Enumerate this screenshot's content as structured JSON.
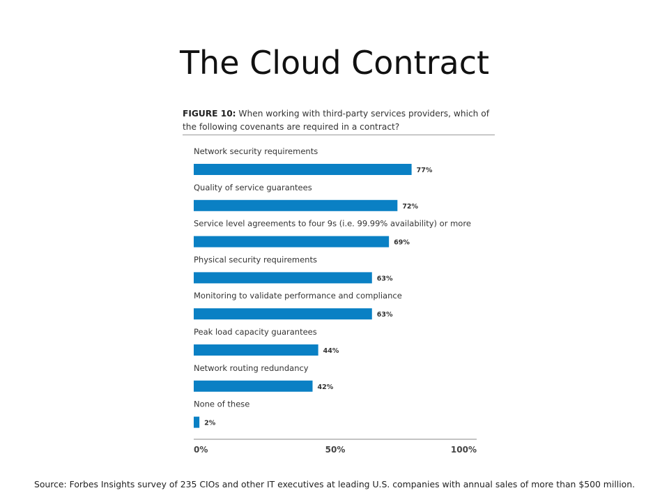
{
  "slide": {
    "title": "The Cloud Contract",
    "source": "Source: Forbes Insights survey of 235 CIOs and other IT executives at leading U.S. companies with annual sales of more than $500 million."
  },
  "figure": {
    "number": "FIGURE 10:",
    "question": "When working with third-party services providers, which of the following covenants are required in a contract?"
  },
  "chart_data": {
    "type": "bar",
    "orientation": "horizontal",
    "categories": [
      "Network security requirements",
      "Quality of service guarantees",
      "Service level agreements to four 9s (i.e. 99.99% availability) or more",
      "Physical security requirements",
      "Monitoring to validate performance and compliance",
      "Peak load capacity guarantees",
      "Network routing redundancy",
      "None of these"
    ],
    "values": [
      77,
      72,
      69,
      63,
      63,
      44,
      42,
      2
    ],
    "value_labels": [
      "77%",
      "72%",
      "69%",
      "63%",
      "63%",
      "44%",
      "42%",
      "2%"
    ],
    "xlim": [
      0,
      100
    ],
    "x_ticks": [
      0,
      50,
      100
    ],
    "x_tick_labels": [
      "0%",
      "50%",
      "100%"
    ],
    "bar_color": "#0a80c4",
    "grid": false
  }
}
